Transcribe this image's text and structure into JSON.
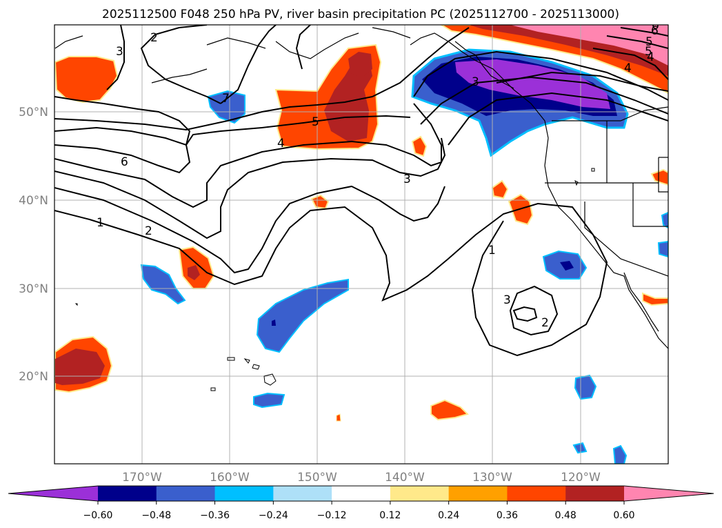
{
  "title": "2025112500 F048 250 hPa PV, river basin precipitation PC (2025112700 - 2025113000)",
  "map": {
    "lon_range": [
      -180,
      -110
    ],
    "lat_range": [
      10,
      60
    ],
    "lat_ticks": [
      {
        "value": 50,
        "label": "50°N"
      },
      {
        "value": 40,
        "label": "40°N"
      },
      {
        "value": 30,
        "label": "30°N"
      },
      {
        "value": 20,
        "label": "20°N"
      }
    ],
    "lon_ticks": [
      {
        "value": -170,
        "label": "170°W"
      },
      {
        "value": -160,
        "label": "160°W"
      },
      {
        "value": -150,
        "label": "150°W"
      },
      {
        "value": -140,
        "label": "140°W"
      },
      {
        "value": -130,
        "label": "130°W"
      },
      {
        "value": -120,
        "label": "120°W"
      }
    ],
    "grid": true,
    "contour_labels": [
      "1",
      "2",
      "3",
      "4",
      "5",
      "6",
      "7",
      "1",
      "2",
      "3",
      "3",
      "4",
      "5",
      "6",
      "2",
      "3",
      "4",
      "5",
      "6"
    ]
  },
  "colorbar": {
    "colors": [
      "#9b30d8",
      "#00008b",
      "#3a5fcd",
      "#00bfff",
      "#aee0f8",
      "#ffffff",
      "#ffe98a",
      "#ffa000",
      "#ff4500",
      "#b22222",
      "#ff85b0"
    ],
    "tick_labels": [
      "−0.60",
      "−0.48",
      "−0.36",
      "−0.24",
      "−0.12",
      "0.12",
      "0.24",
      "0.36",
      "0.48",
      "0.60"
    ],
    "extend": "both"
  }
}
